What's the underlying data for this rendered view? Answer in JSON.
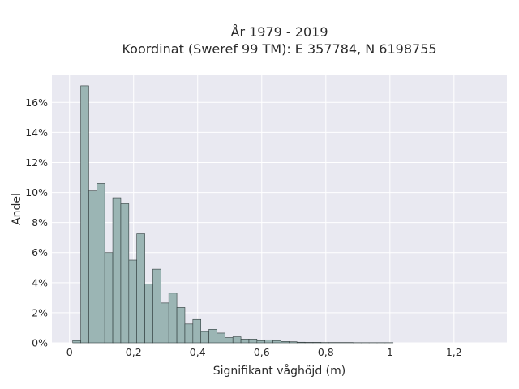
{
  "chart_data": {
    "type": "bar",
    "title_line1": "År 1979 - 2019",
    "title_line2": "Koordinat (Sweref 99 TM): E 357784, N 6198755",
    "xlabel": "Signifikant våghöjd (m)",
    "ylabel": "Andel",
    "xlim": [
      -0.055,
      1.365
    ],
    "ylim": [
      0,
      0.1785
    ],
    "grid": true,
    "x_ticks": [
      {
        "value": 0,
        "label": "0"
      },
      {
        "value": 0.2,
        "label": "0,2"
      },
      {
        "value": 0.4,
        "label": "0,4"
      },
      {
        "value": 0.6,
        "label": "0,6"
      },
      {
        "value": 0.8,
        "label": "0,8"
      },
      {
        "value": 1.0,
        "label": "1"
      },
      {
        "value": 1.2,
        "label": "1,2"
      }
    ],
    "y_ticks": [
      {
        "value": 0,
        "label": "0%"
      },
      {
        "value": 0.02,
        "label": "2%"
      },
      {
        "value": 0.04,
        "label": "4%"
      },
      {
        "value": 0.06,
        "label": "6%"
      },
      {
        "value": 0.08,
        "label": "8%"
      },
      {
        "value": 0.1,
        "label": "10%"
      },
      {
        "value": 0.12,
        "label": "12%"
      },
      {
        "value": 0.14,
        "label": "14%"
      },
      {
        "value": 0.16,
        "label": "16%"
      }
    ],
    "bin_start": 0.01,
    "bin_width": 0.025,
    "values": [
      0.0015,
      0.171,
      0.101,
      0.106,
      0.06,
      0.0965,
      0.0925,
      0.055,
      0.0725,
      0.039,
      0.049,
      0.0265,
      0.033,
      0.0235,
      0.0125,
      0.0155,
      0.0075,
      0.009,
      0.0065,
      0.0035,
      0.004,
      0.0025,
      0.0025,
      0.0015,
      0.002,
      0.0015,
      0.0009,
      0.0007,
      0.0004,
      0.0003,
      0.0003,
      0.0002,
      0.0002,
      0.0002,
      0.0002,
      0.0001,
      0.0001,
      0.0001,
      0.0001,
      0.0001
    ],
    "colors": {
      "bar_fill": "#9bb5b4",
      "bar_stroke": "#2f3b3b",
      "plot_bg": "#e9e9f1",
      "grid": "#ffffff"
    }
  }
}
